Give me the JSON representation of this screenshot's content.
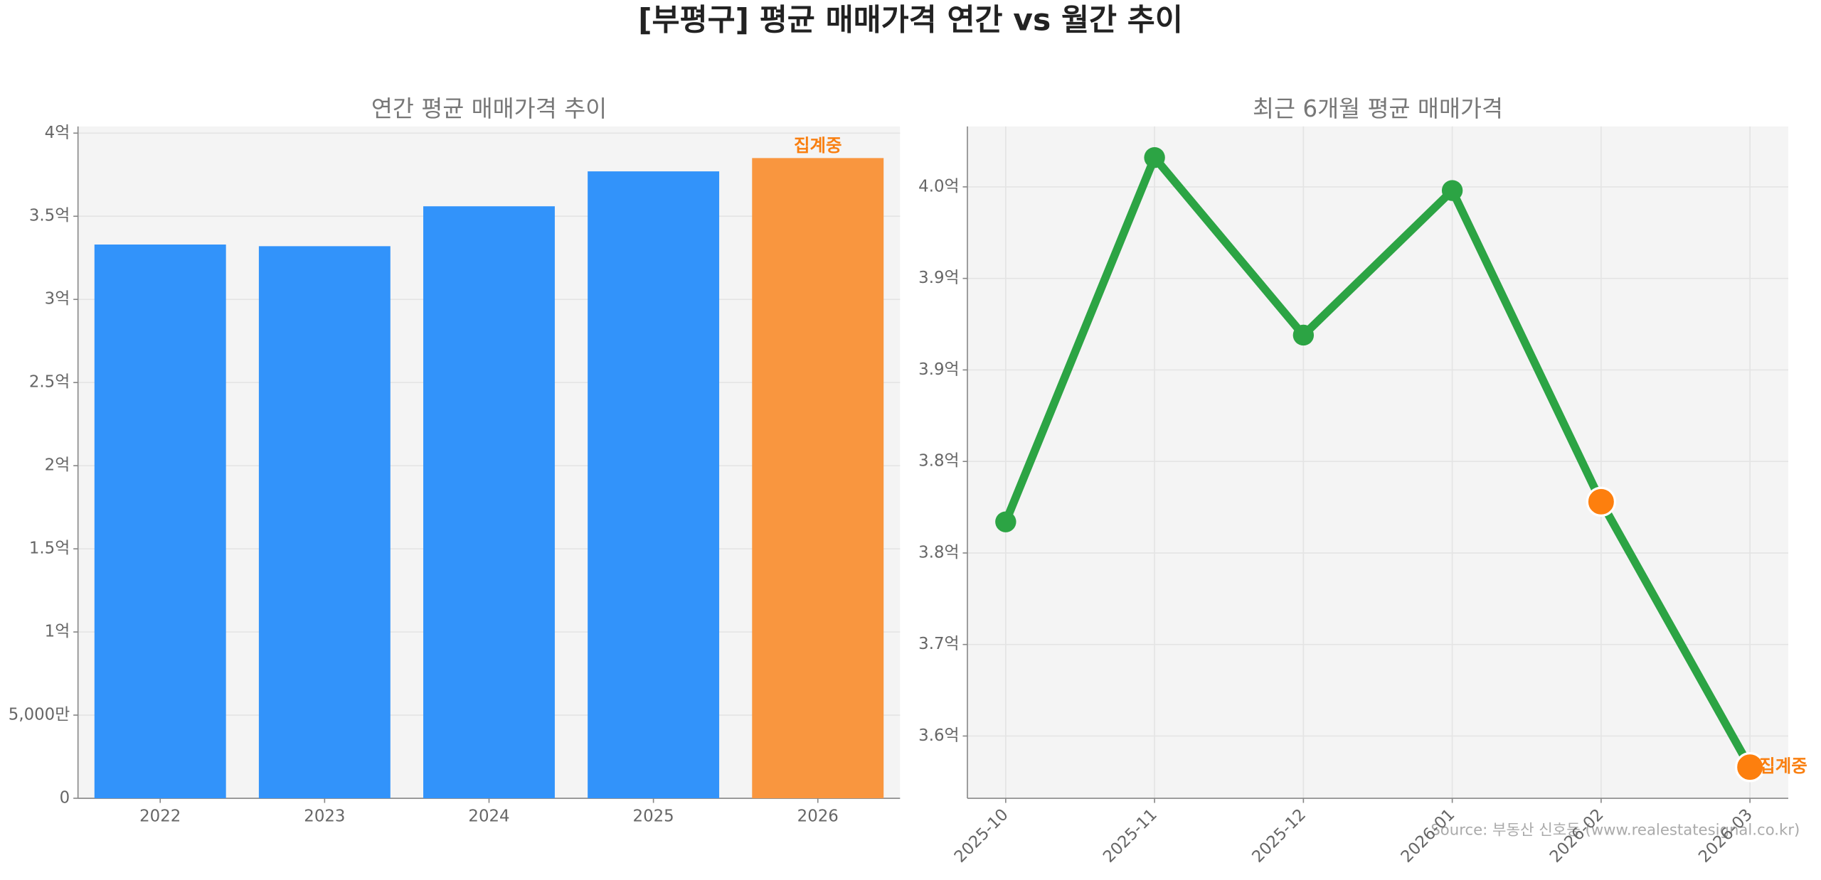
{
  "title": "[부평구] 평균 매매가격 연간 vs 월간 추이",
  "source": "Source: 부동산 신호등 (www.realestatesignal.co.kr)",
  "chart_data": [
    {
      "type": "bar",
      "title": "연간 평균 매매가격 추이",
      "categories": [
        "2022",
        "2023",
        "2024",
        "2025",
        "2026"
      ],
      "values": [
        3.33,
        3.32,
        3.56,
        3.77,
        3.85
      ],
      "colors": [
        "#3293fa",
        "#3293fa",
        "#3293fa",
        "#3293fa",
        "#f9963f"
      ],
      "annotation": "집계중",
      "annotation_color": "#f97f10",
      "ylim": [
        0,
        4.04
      ],
      "yticks": [
        0,
        {
          "value": 0.5,
          "label": "5,000만"
        },
        {
          "value": 1,
          "label": "1억"
        },
        {
          "value": 1.5,
          "label": "1.5억"
        },
        {
          "value": 2,
          "label": "2억"
        },
        {
          "value": 2.5,
          "label": "2.5억"
        },
        {
          "value": 3,
          "label": "3억"
        },
        {
          "value": 3.5,
          "label": "3.5억"
        },
        {
          "value": 4,
          "label": "4억"
        }
      ],
      "grid": true
    },
    {
      "type": "line",
      "title": "최근 6개월 평균 매매가격",
      "categories": [
        "2025-10",
        "2025-11",
        "2025-12",
        "2026-01",
        "2026-02",
        "2026-03"
      ],
      "series": [
        {
          "color": "#2ca444",
          "values": [
            3.767,
            3.966,
            3.869,
            3.948,
            3.778,
            3.633
          ],
          "point_colors": [
            "#2ca444",
            "#2ca444",
            "#2ca444",
            "#2ca444",
            "#fd7f0e",
            "#fd7f0e"
          ]
        }
      ],
      "annotation": "집계중",
      "annotation_color": "#f97f10",
      "ylim": [
        3.616,
        3.983
      ],
      "yticks": [
        {
          "value": 3.65,
          "label": "3.6억"
        },
        {
          "value": 3.7,
          "label": "3.7억"
        },
        {
          "value": 3.75,
          "label": "3.8억"
        },
        {
          "value": 3.8,
          "label": "3.8억"
        },
        {
          "value": 3.85,
          "label": "3.9억"
        },
        {
          "value": 3.9,
          "label": "3.9억"
        },
        {
          "value": 3.95,
          "label": "4.0억"
        }
      ],
      "grid": true
    }
  ]
}
